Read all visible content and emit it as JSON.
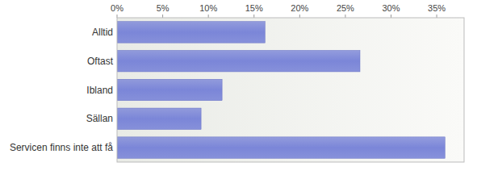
{
  "chart_data": {
    "type": "bar",
    "orientation": "horizontal",
    "categories": [
      "Alltid",
      "Oftast",
      "Ibland",
      "Sällan",
      "Servicen finns inte att få"
    ],
    "values": [
      16.2,
      26.6,
      11.5,
      9.2,
      35.9
    ],
    "color": "#7b86d8",
    "xlim": [
      0,
      38
    ],
    "xticks": [
      {
        "value": 0,
        "label": "0%"
      },
      {
        "value": 5,
        "label": "5%"
      },
      {
        "value": 10,
        "label": "10%"
      },
      {
        "value": 15,
        "label": "15%"
      },
      {
        "value": 20,
        "label": "20%"
      },
      {
        "value": 25,
        "label": "25%"
      },
      {
        "value": 30,
        "label": "30%"
      },
      {
        "value": 35,
        "label": "35%"
      }
    ],
    "grid": false
  }
}
